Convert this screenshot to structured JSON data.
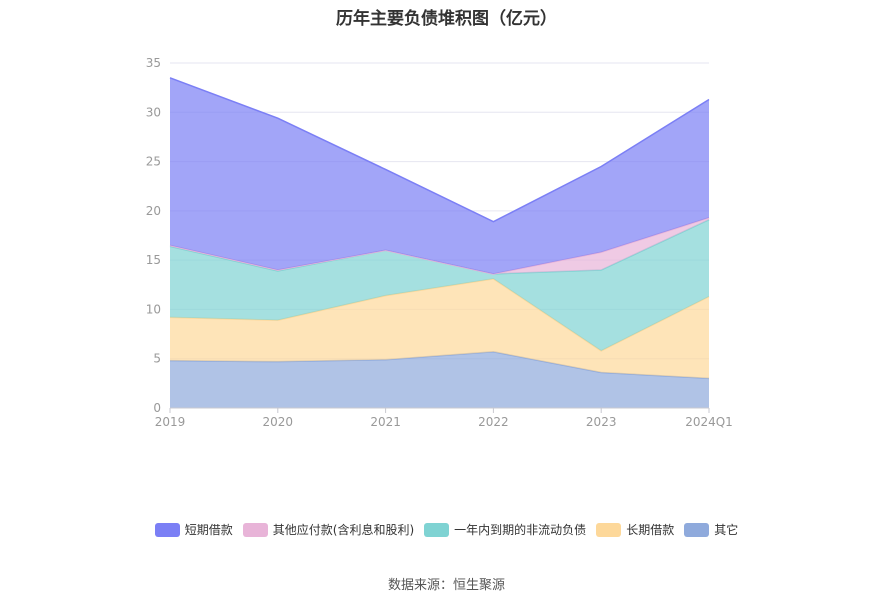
{
  "source_text": "数据来源：恒生聚源",
  "chart_data": {
    "type": "area",
    "stacked": true,
    "title": "历年主要负债堆积图（亿元）",
    "categories": [
      "2019",
      "2020",
      "2021",
      "2022",
      "2023",
      "2024Q1"
    ],
    "ylim": [
      0,
      35
    ],
    "yticks": [
      0,
      5,
      10,
      15,
      20,
      25,
      30,
      35
    ],
    "grid": true,
    "legend_position": "bottom",
    "series": [
      {
        "name": "其它",
        "color": "#8faadc",
        "values": [
          4.8,
          4.7,
          4.9,
          5.7,
          3.6,
          3.0
        ]
      },
      {
        "name": "长期借款",
        "color": "#fdd89a",
        "values": [
          4.4,
          4.2,
          6.5,
          7.4,
          2.2,
          8.3
        ]
      },
      {
        "name": "一年内到期的非流动负债",
        "color": "#7fd3d3",
        "values": [
          7.2,
          5.0,
          4.6,
          0.5,
          8.2,
          7.8
        ]
      },
      {
        "name": "其他应付款(含利息和股利)",
        "color": "#e8b4d8",
        "values": [
          0.1,
          0.1,
          0.0,
          0.0,
          1.8,
          0.2
        ]
      },
      {
        "name": "短期借款",
        "color": "#7b7ff5",
        "values": [
          17.0,
          15.4,
          8.2,
          5.3,
          8.7,
          12.0
        ]
      }
    ],
    "legend_order": [
      "短期借款",
      "其他应付款(含利息和股利)",
      "一年内到期的非流动负债",
      "长期借款",
      "其它"
    ]
  }
}
